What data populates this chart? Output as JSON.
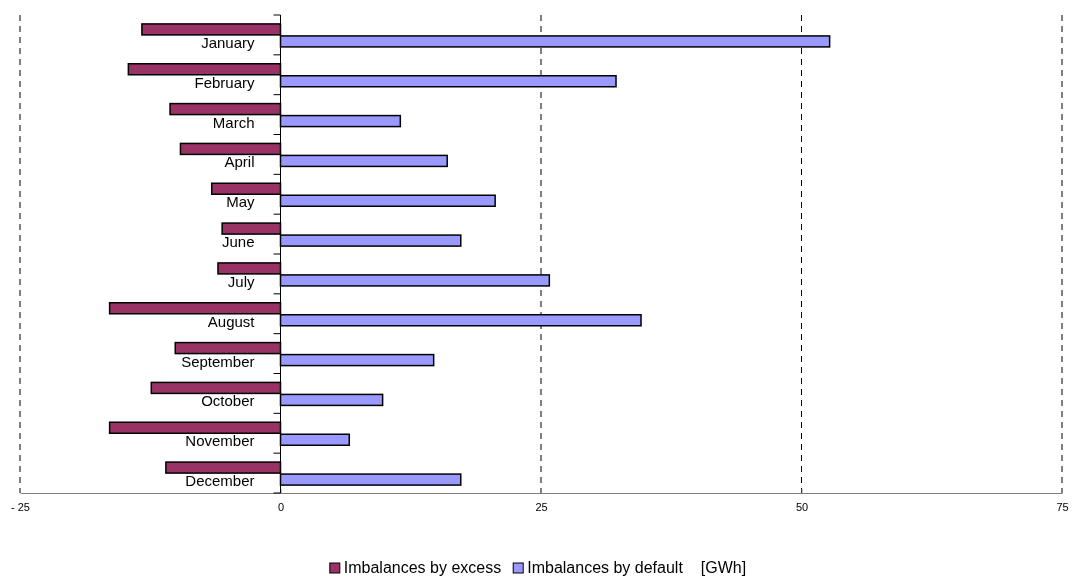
{
  "chart_data": {
    "type": "bar",
    "orientation": "horizontal",
    "categories": [
      "January",
      "February",
      "March",
      "April",
      "May",
      "June",
      "July",
      "August",
      "September",
      "October",
      "November",
      "December"
    ],
    "series": [
      {
        "name": "Imbalances by excess",
        "color": "#993366",
        "values": [
          -13.3,
          -14.6,
          -10.6,
          -9.6,
          -6.6,
          -5.6,
          -6.0,
          -16.4,
          -10.1,
          -12.4,
          -16.4,
          -11.0
        ]
      },
      {
        "name": "Imbalances by default",
        "color": "#9999ff",
        "values": [
          52.7,
          32.2,
          11.5,
          16.0,
          20.6,
          17.3,
          25.8,
          34.6,
          14.7,
          9.8,
          6.6,
          17.3
        ]
      }
    ],
    "xlim": [
      -25,
      75
    ],
    "xticks": [
      {
        "value": -25,
        "label": "- 25"
      },
      0,
      25,
      50,
      75
    ],
    "xlabel": "[GWh]",
    "grid": "x",
    "legend": "bottom"
  }
}
